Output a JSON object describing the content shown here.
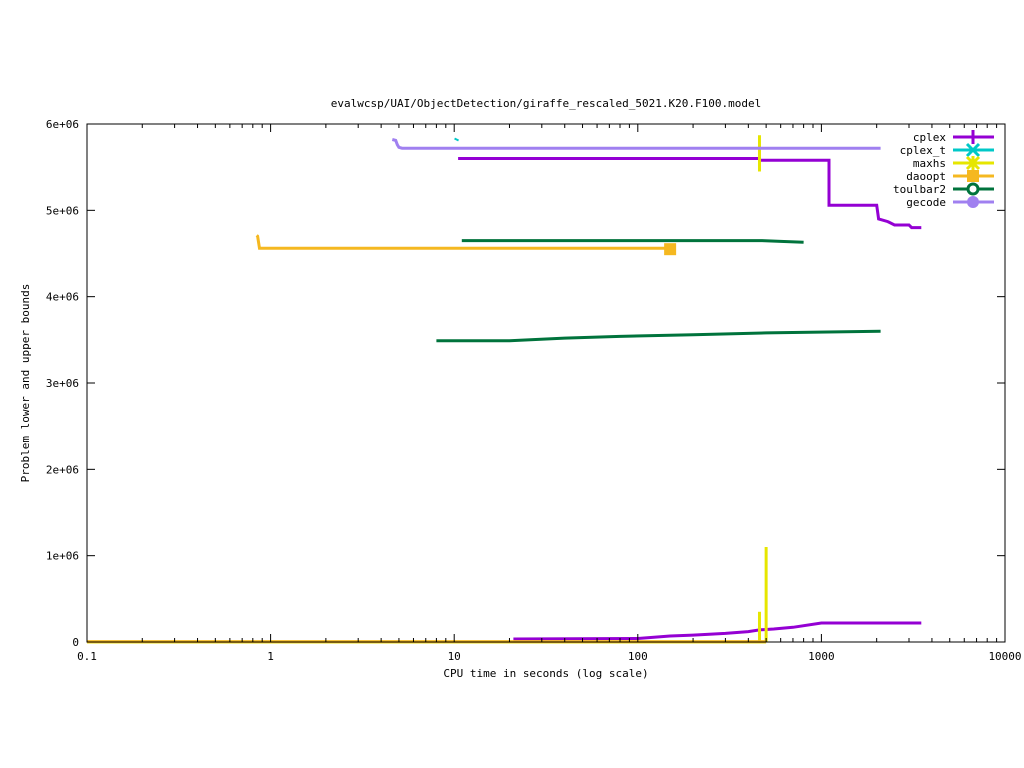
{
  "chart_data": {
    "type": "line",
    "title": "evalwcsp/UAI/ObjectDetection/giraffe_rescaled_5021.K20.F100.model",
    "xlabel": "CPU time in seconds (log scale)",
    "ylabel": "Problem lower and upper bounds",
    "x_scale": "log",
    "xlim": [
      0.1,
      10000
    ],
    "ylim": [
      0,
      6000000
    ],
    "x_ticks": [
      0.1,
      1,
      10,
      100,
      1000,
      10000
    ],
    "x_tick_labels": [
      "0.1",
      "1",
      "10",
      "100",
      "1000",
      "10000"
    ],
    "y_ticks": [
      0,
      1000000,
      2000000,
      3000000,
      4000000,
      5000000,
      6000000
    ],
    "y_tick_labels": [
      "0",
      "1e+06",
      "2e+06",
      "3e+06",
      "4e+06",
      "5e+06",
      "6e+06"
    ],
    "grid": false,
    "legend_position": "top-right",
    "series": [
      {
        "name": "cplex",
        "color": "#9400d3",
        "marker": "plus",
        "lines": [
          [
            [
              10.5,
              5600000
            ],
            [
              460,
              5600000
            ],
            [
              460,
              5580000
            ],
            [
              1100,
              5580000
            ],
            [
              1100,
              5060000
            ],
            [
              2000,
              5060000
            ],
            [
              2050,
              4900000
            ],
            [
              2300,
              4870000
            ],
            [
              2500,
              4830000
            ],
            [
              3000,
              4830000
            ],
            [
              3100,
              4800000
            ],
            [
              3500,
              4800000
            ]
          ],
          [
            [
              21,
              35000
            ],
            [
              100,
              40000
            ],
            [
              150,
              70000
            ],
            [
              200,
              80000
            ],
            [
              300,
              100000
            ],
            [
              400,
              120000
            ],
            [
              460,
              140000
            ],
            [
              550,
              150000
            ],
            [
              700,
              170000
            ],
            [
              1000,
              220000
            ],
            [
              3500,
              220000
            ]
          ]
        ]
      },
      {
        "name": "cplex_t",
        "color": "#00c8c8",
        "marker": "x",
        "points": [
          [
            10.3,
            5820000
          ]
        ]
      },
      {
        "name": "maxhs",
        "color": "#e6e600",
        "marker": "star",
        "vlines": [
          [
            460,
            5450000,
            5870000
          ],
          [
            460,
            0,
            350000
          ],
          [
            500,
            0,
            1100000
          ]
        ],
        "lines": [
          [
            [
              0.1,
              0
            ],
            [
              500,
              0
            ]
          ]
        ]
      },
      {
        "name": "daoopt",
        "color": "#f5b820",
        "marker": "square",
        "lines": [
          [
            [
              0.84,
              4710000
            ],
            [
              0.85,
              4700000
            ],
            [
              0.87,
              4560000
            ],
            [
              150,
              4560000
            ]
          ],
          [
            [
              0.1,
              5000
            ],
            [
              500,
              5000
            ]
          ]
        ],
        "points": [
          [
            150,
            4550000
          ]
        ]
      },
      {
        "name": "toulbar2",
        "color": "#00733c",
        "marker": "circle",
        "lines": [
          [
            [
              11,
              4650000
            ],
            [
              470,
              4650000
            ],
            [
              600,
              4640000
            ],
            [
              800,
              4630000
            ]
          ],
          [
            [
              8,
              3490000
            ],
            [
              20,
              3490000
            ],
            [
              40,
              3520000
            ],
            [
              80,
              3540000
            ],
            [
              200,
              3560000
            ],
            [
              500,
              3580000
            ],
            [
              2100,
              3600000
            ]
          ]
        ]
      },
      {
        "name": "gecode",
        "color": "#a080f0",
        "marker": "dot",
        "lines": [
          [
            [
              4.6,
              5820000
            ],
            [
              4.8,
              5810000
            ],
            [
              4.9,
              5760000
            ],
            [
              5.0,
              5730000
            ],
            [
              5.2,
              5720000
            ],
            [
              2100,
              5720000
            ]
          ]
        ]
      }
    ]
  }
}
